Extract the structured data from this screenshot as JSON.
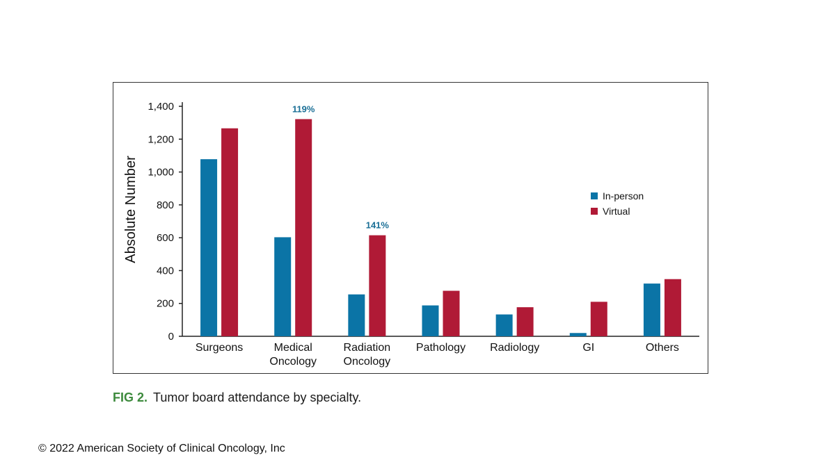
{
  "chart_data": {
    "type": "bar",
    "categories": [
      "Surgeons",
      "Medical\nOncology",
      "Radiation\nOncology",
      "Pathology",
      "Radiology",
      "GI",
      "Others"
    ],
    "series": [
      {
        "name": "In-person",
        "color": "#0b74a6",
        "values": [
          1078,
          603,
          255,
          188,
          133,
          20,
          321
        ]
      },
      {
        "name": "Virtual",
        "color": "#b01a36",
        "values": [
          1266,
          1322,
          615,
          277,
          177,
          210,
          348
        ]
      }
    ],
    "ylabel": "Absolute Number",
    "xlabel": "",
    "ylim": [
      0,
      1400
    ],
    "yticks": [
      0,
      200,
      400,
      600,
      800,
      1000,
      1200,
      1400
    ],
    "ytick_labels": [
      "0",
      "200",
      "400",
      "600",
      "800",
      "1,000",
      "1,200",
      "1,400"
    ],
    "annotations": [
      {
        "text": "119%",
        "category_index": 1,
        "series_index": 1
      },
      {
        "text": "141%",
        "category_index": 2,
        "series_index": 1
      }
    ],
    "legend_position": "right",
    "grid": false
  },
  "caption": {
    "fig_label": "FIG 2.",
    "text": "Tumor board attendance by specialty."
  },
  "copyright": "© 2022 American Society of Clinical Oncology, Inc"
}
